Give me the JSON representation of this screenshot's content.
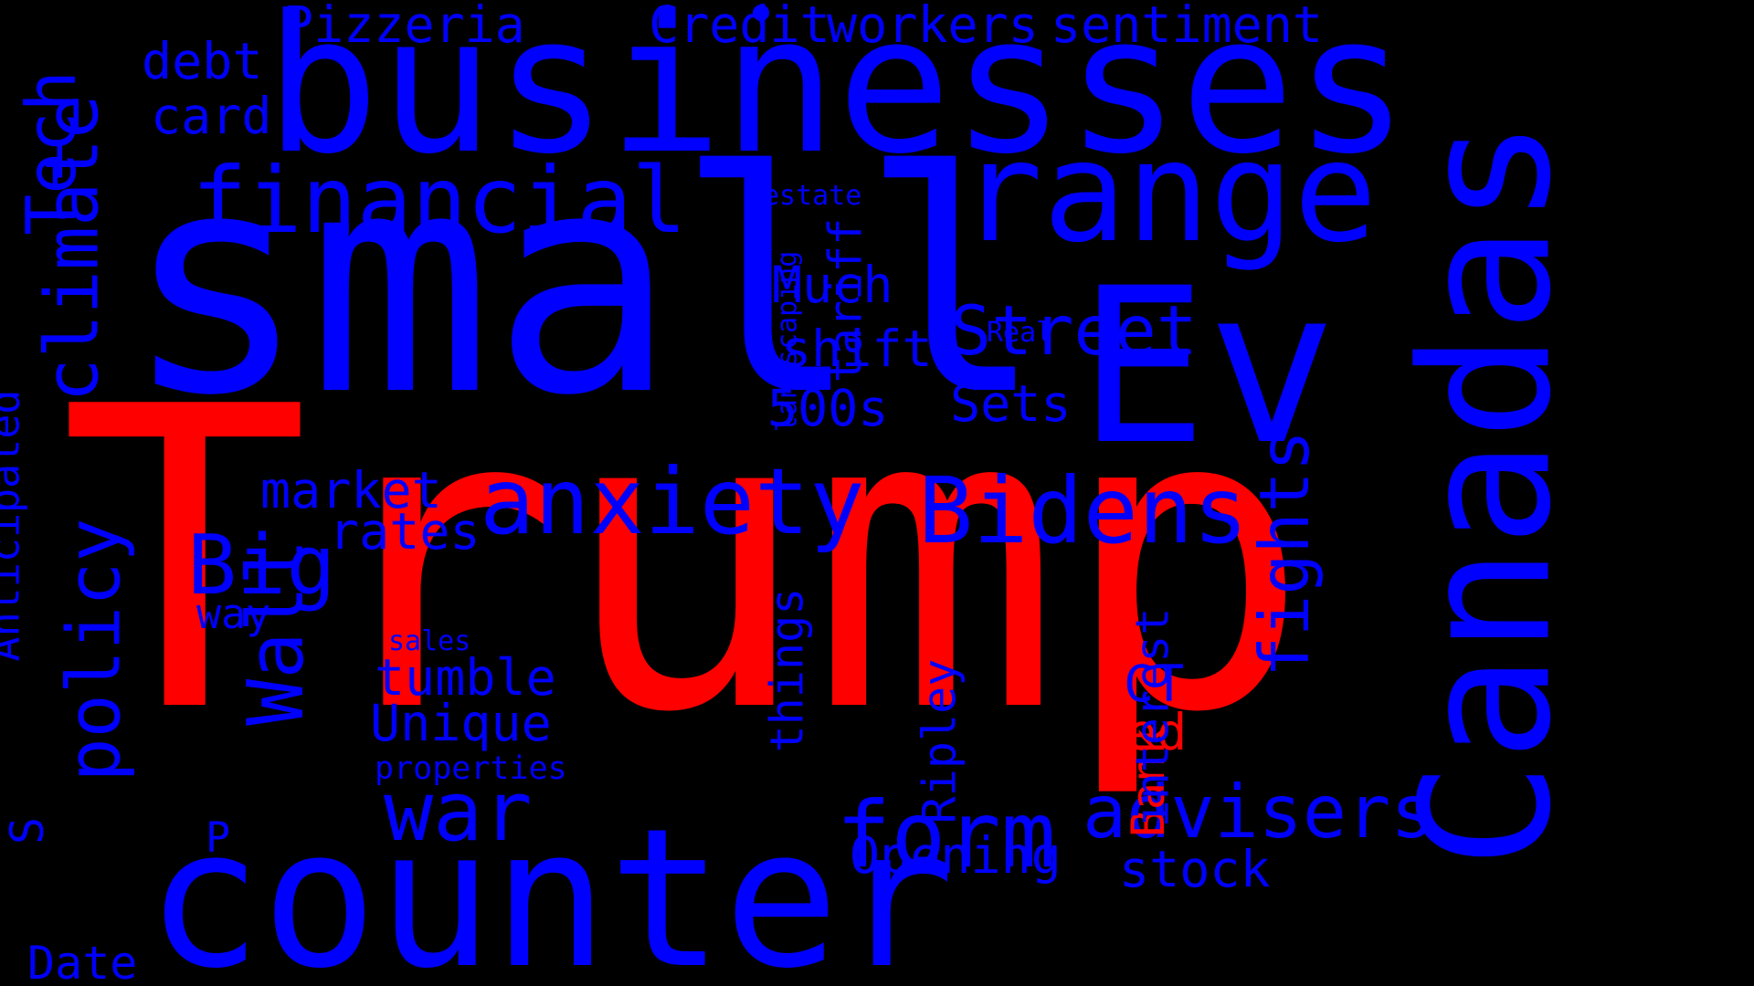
{
  "colors": {
    "background": "#000000",
    "blue": "#0000ff",
    "red": "#ff0000"
  },
  "words": [
    {
      "text": "Trump",
      "color": "red"
    },
    {
      "text": "small",
      "color": "blue"
    },
    {
      "text": "businesses",
      "color": "blue"
    },
    {
      "text": "counter",
      "color": "blue"
    },
    {
      "text": "Canadas",
      "color": "blue"
    },
    {
      "text": "Ev",
      "color": "blue"
    },
    {
      "text": "range",
      "color": "blue"
    },
    {
      "text": "financial",
      "color": "blue"
    },
    {
      "text": "anxiety",
      "color": "blue"
    },
    {
      "text": "Bidens",
      "color": "blue"
    },
    {
      "text": "climate",
      "color": "blue"
    },
    {
      "text": "policy",
      "color": "blue"
    },
    {
      "text": "form",
      "color": "blue"
    },
    {
      "text": "advisers",
      "color": "blue"
    },
    {
      "text": "war",
      "color": "blue"
    },
    {
      "text": "Wall",
      "color": "blue"
    },
    {
      "text": "Big",
      "color": "blue"
    },
    {
      "text": "Tech",
      "color": "blue"
    },
    {
      "text": "fights",
      "color": "blue"
    },
    {
      "text": "Street",
      "color": "blue"
    },
    {
      "text": "Much",
      "color": "blue"
    },
    {
      "text": "shift",
      "color": "blue"
    },
    {
      "text": "Sets",
      "color": "blue"
    },
    {
      "text": "500s",
      "color": "blue"
    },
    {
      "text": "tariff",
      "color": "blue"
    },
    {
      "text": "Pizzeria",
      "color": "blue"
    },
    {
      "text": "Credit",
      "color": "blue"
    },
    {
      "text": "workers",
      "color": "blue"
    },
    {
      "text": "sentiment",
      "color": "blue"
    },
    {
      "text": "debt",
      "color": "blue"
    },
    {
      "text": "card",
      "color": "blue"
    },
    {
      "text": "market",
      "color": "blue"
    },
    {
      "text": "rates",
      "color": "blue"
    },
    {
      "text": "way",
      "color": "blue"
    },
    {
      "text": "tumble",
      "color": "blue"
    },
    {
      "text": "Unique",
      "color": "blue"
    },
    {
      "text": "sales",
      "color": "blue"
    },
    {
      "text": "properties",
      "color": "blue"
    },
    {
      "text": "things",
      "color": "blue"
    },
    {
      "text": "Ripley",
      "color": "blue"
    },
    {
      "text": "Bank",
      "color": "red"
    },
    {
      "text": "Fed",
      "color": "red"
    },
    {
      "text": "interest",
      "color": "blue"
    },
    {
      "text": "CT",
      "color": "blue"
    },
    {
      "text": "stock",
      "color": "blue"
    },
    {
      "text": "Opening",
      "color": "blue"
    },
    {
      "text": "Anticipated",
      "color": "blue"
    },
    {
      "text": "landscaping",
      "color": "blue"
    },
    {
      "text": "estate",
      "color": "blue"
    },
    {
      "text": "Real",
      "color": "blue"
    },
    {
      "text": "Date",
      "color": "blue"
    },
    {
      "text": "S",
      "color": "blue"
    },
    {
      "text": "P",
      "color": "blue"
    }
  ]
}
